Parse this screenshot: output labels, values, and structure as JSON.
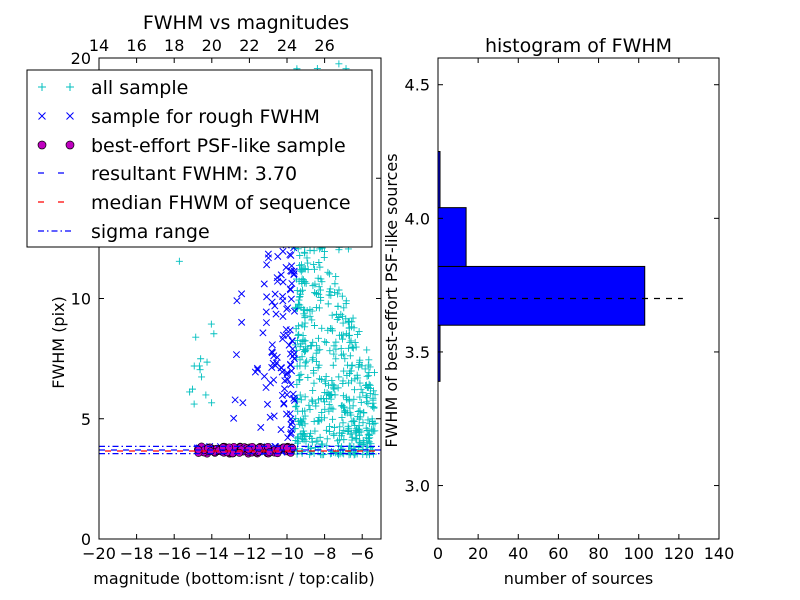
{
  "chart_data": [
    {
      "type": "scatter",
      "title": "FWHM vs magnitudes",
      "xlabel": "magnitude (bottom:isnt / top:calib)",
      "ylabel": "FWHM (pix)",
      "xlim": [
        -20,
        -5
      ],
      "ylim": [
        0,
        20
      ],
      "x_ticks": [
        -20,
        -18,
        -16,
        -14,
        -12,
        -10,
        -8,
        -6
      ],
      "x_tick_labels": [
        "−20",
        "−18",
        "−16",
        "−14",
        "−12",
        "−10",
        "−8",
        "−6"
      ],
      "y_ticks": [
        0,
        5,
        10,
        15,
        20
      ],
      "y_tick_labels": [
        "0",
        "5",
        "10",
        "15",
        "20"
      ],
      "top_ticks": [
        14,
        16,
        18,
        20,
        22,
        24,
        26
      ],
      "top_offset": 34,
      "series": [
        {
          "name": "all sample",
          "marker": "+",
          "color": "#00bfbf"
        },
        {
          "name": "sample for rough FWHM",
          "marker": "x",
          "color": "#0000ff"
        },
        {
          "name": "best-effort PSF-like sample",
          "marker": "o",
          "color": "#bf00bf"
        }
      ],
      "lines": [
        {
          "name": "resultant FWHM: 3.70",
          "style": "dashed",
          "color": "#0000ff",
          "y": 3.7
        },
        {
          "name": "median FHWM of sequence",
          "style": "dashed",
          "color": "#ff0000",
          "y": 3.7
        },
        {
          "name": "sigma range",
          "style": "dashdot",
          "color": "#0000ff",
          "y_values": [
            3.55,
            3.85
          ]
        }
      ],
      "point_clusters": {
        "all": [
          {
            "x": [
              -9.5,
              -5.3
            ],
            "y": [
              2.5,
              14
            ],
            "n": 450,
            "skew": "decreasing"
          },
          {
            "x": [
              -9.6,
              -9.0
            ],
            "y": [
              3.5,
              20
            ],
            "n": 140
          },
          {
            "x": [
              -8.5,
              -6.5
            ],
            "y": [
              12,
              20
            ],
            "n": 40
          },
          {
            "x": [
              -15.2,
              -13.8
            ],
            "y": [
              5.5,
              9
            ],
            "n": 14
          },
          {
            "x": [
              -16,
              -14
            ],
            "y": [
              11.5,
              13
            ],
            "n": 3
          }
        ],
        "rough": [
          {
            "x": [
              -10.3,
              -9.6
            ],
            "y": [
              4.2,
              13.5
            ],
            "n": 70
          },
          {
            "x": [
              -11.4,
              -10.3
            ],
            "y": [
              4.5,
              12.5
            ],
            "n": 35
          },
          {
            "x": [
              -13,
              -11.5
            ],
            "y": [
              5,
              11
            ],
            "n": 10
          },
          {
            "x": [
              -15,
              -9.7
            ],
            "y": [
              3.6,
              3.85
            ],
            "n": 60
          }
        ],
        "psf": {
          "x": [
            -14.8,
            -9.6
          ],
          "y": [
            3.55,
            3.85
          ],
          "n": 110
        }
      },
      "legend": {
        "location": "upper-left"
      }
    },
    {
      "type": "bar",
      "orientation": "horizontal",
      "title": "histogram of FWHM",
      "xlabel": "number of sources",
      "ylabel": "FWHM of best-effort PSF-like sources",
      "xlim": [
        0,
        140
      ],
      "ylim": [
        2.8,
        4.6
      ],
      "x_ticks": [
        0,
        20,
        40,
        60,
        80,
        100,
        120,
        140
      ],
      "x_tick_labels": [
        "0",
        "20",
        "40",
        "60",
        "80",
        "100",
        "120",
        "140"
      ],
      "y_ticks": [
        3.0,
        3.5,
        4.0,
        4.5
      ],
      "y_tick_labels": [
        "3.0",
        "3.5",
        "4.0",
        "4.5"
      ],
      "bins": [
        {
          "y0": 3.39,
          "y1": 3.6,
          "value": 1
        },
        {
          "y0": 3.6,
          "y1": 3.82,
          "value": 103
        },
        {
          "y0": 3.82,
          "y1": 4.04,
          "value": 14
        },
        {
          "y0": 4.04,
          "y1": 4.25,
          "value": 1
        }
      ],
      "bar_color": "#0000ff",
      "reference_line": {
        "y": 3.7,
        "x_range": [
          0,
          122
        ],
        "style": "dashed",
        "color": "#000000"
      }
    }
  ]
}
